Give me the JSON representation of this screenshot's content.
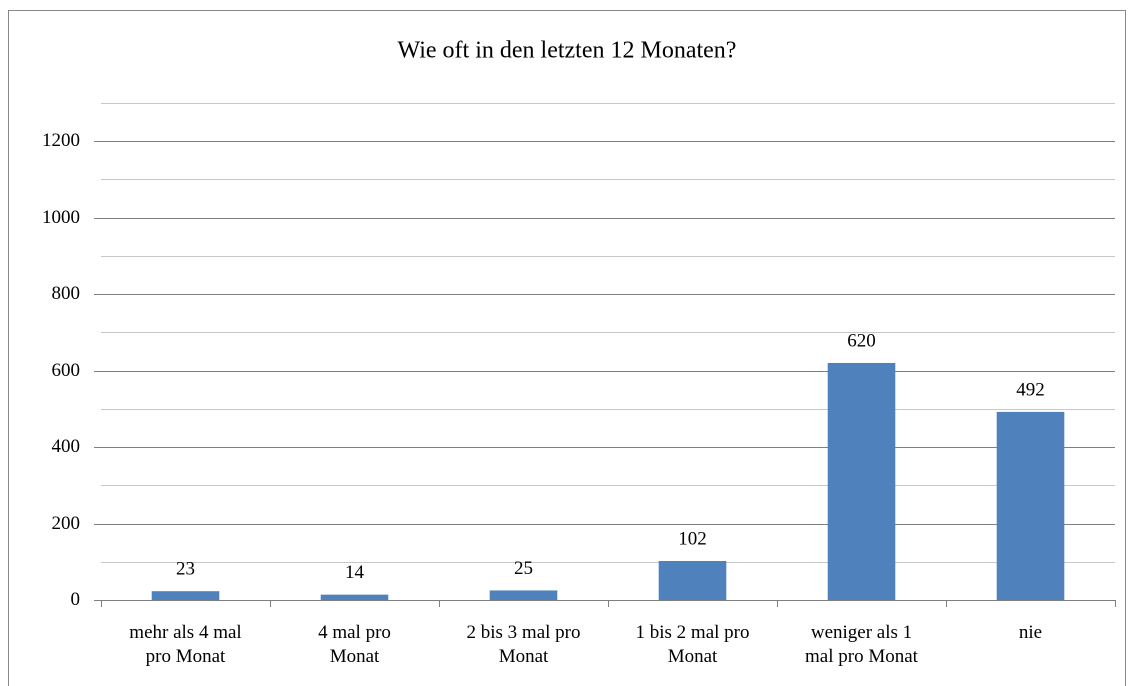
{
  "chart_data": {
    "type": "bar",
    "title": "Wie oft in den letzten 12 Monaten?",
    "categories": [
      "mehr als 4 mal\npro Monat",
      "4 mal pro\nMonat",
      "2 bis 3 mal pro\nMonat",
      "1 bis 2 mal pro\nMonat",
      "weniger als 1\nmal pro Monat",
      "nie"
    ],
    "values": [
      23,
      14,
      25,
      102,
      620,
      492
    ],
    "color": "#4f81bd",
    "ylim": [
      0,
      1300
    ],
    "yticks": [
      0,
      200,
      400,
      600,
      800,
      1000,
      1200
    ],
    "yminor_ticks": [
      100,
      300,
      500,
      700,
      900,
      1100,
      1300
    ],
    "grid": true
  }
}
